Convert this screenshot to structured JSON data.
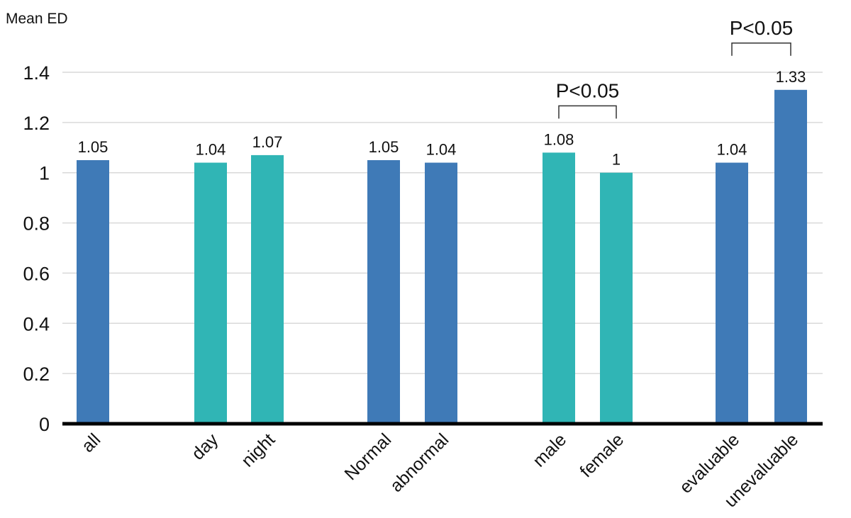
{
  "chart_data": {
    "type": "bar",
    "ylabel": "Mean ED",
    "xlabel": "",
    "ylim": [
      0,
      1.4
    ],
    "yticks": [
      "0",
      "0.2",
      "0.4",
      "0.6",
      "0.8",
      "1",
      "1.2",
      "1.4"
    ],
    "grid": true,
    "colors": {
      "blue": "#3F7AB7",
      "teal": "#30B5B5"
    },
    "bars": [
      {
        "category": "all",
        "value": 1.05,
        "label": "1.05",
        "color": "blue"
      },
      {
        "category": "day",
        "value": 1.04,
        "label": "1.04",
        "color": "teal"
      },
      {
        "category": "night",
        "value": 1.07,
        "label": "1.07",
        "color": "teal"
      },
      {
        "category": "Normal",
        "value": 1.05,
        "label": "1.05",
        "color": "blue"
      },
      {
        "category": "abnormal",
        "value": 1.04,
        "label": "1.04",
        "color": "blue"
      },
      {
        "category": "male",
        "value": 1.08,
        "label": "1.08",
        "color": "teal"
      },
      {
        "category": "female",
        "value": 1.0,
        "label": "1",
        "color": "teal"
      },
      {
        "category": "evaluable",
        "value": 1.04,
        "label": "1.04",
        "color": "blue"
      },
      {
        "category": "unevaluable",
        "value": 1.33,
        "label": "1.33",
        "color": "blue"
      }
    ],
    "annotations": [
      {
        "text": "P<0.05",
        "between": [
          "male",
          "female"
        ]
      },
      {
        "text": "P<0.05",
        "between": [
          "evaluable",
          "unevaluable"
        ]
      }
    ]
  }
}
